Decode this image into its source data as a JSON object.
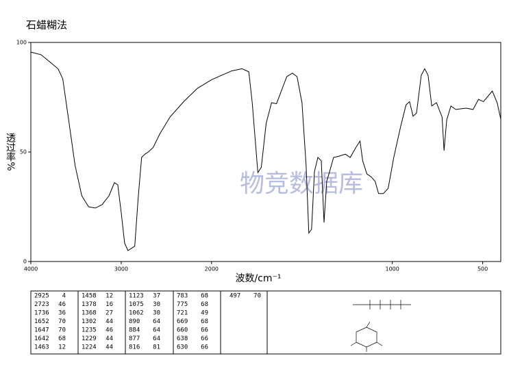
{
  "chart_data": {
    "type": "line",
    "title": "石蜡糊法",
    "ylabel": "透过率%",
    "xlabel": "波数/cm⁻¹",
    "watermark": "物竞数据库",
    "color": "#000000",
    "xlim": [
      4000,
      400
    ],
    "x_scale_break": 2000,
    "ylim": [
      0,
      100
    ],
    "xticks": [
      4000,
      3000,
      2000,
      1000,
      500
    ],
    "yticks": [
      0,
      50,
      100
    ],
    "x": [
      4000,
      3887,
      3774,
      3699,
      3647,
      3586,
      3511,
      3436,
      3361,
      3286,
      3211,
      3135,
      3075,
      3038,
      3000,
      2962,
      2925,
      2887,
      2850,
      2812,
      2774,
      2737,
      2700,
      2647,
      2571,
      2459,
      2308,
      2158,
      2000,
      1889,
      1832,
      1794,
      1775,
      1744,
      1725,
      1698,
      1668,
      1641,
      1584,
      1553,
      1527,
      1500,
      1477,
      1462,
      1447,
      1431,
      1412,
      1393,
      1378,
      1363,
      1347,
      1325,
      1298,
      1260,
      1233,
      1202,
      1179,
      1164,
      1141,
      1118,
      1095,
      1076,
      1050,
      1023,
      992,
      954,
      924,
      905,
      885,
      866,
      840,
      821,
      802,
      782,
      756,
      725,
      714,
      699,
      676,
      649,
      592,
      553,
      523,
      496,
      447,
      420,
      400
    ],
    "values": [
      95.6,
      94.4,
      90.6,
      88,
      83.4,
      66,
      44,
      30,
      25,
      24.4,
      26,
      30,
      36,
      35,
      22.5,
      8.4,
      5,
      6,
      7,
      29,
      47.5,
      49,
      50,
      52,
      58.4,
      66,
      73,
      79,
      83,
      87,
      88,
      86.6,
      72.5,
      40.6,
      43,
      63,
      72.5,
      72,
      84.4,
      86,
      84.4,
      72.5,
      44,
      13,
      14.7,
      41,
      47.5,
      46,
      17.8,
      36.6,
      41,
      47.5,
      48,
      49,
      47.5,
      52,
      55,
      46,
      40,
      38.7,
      36.6,
      31,
      31,
      33.4,
      47.5,
      61.6,
      71.5,
      73,
      66.3,
      67.8,
      85,
      88,
      85,
      71,
      72.5,
      66,
      50.6,
      64.7,
      71,
      69.4,
      70,
      69.4,
      74,
      73,
      77.8,
      72.5,
      65
    ]
  },
  "peak_table": [
    [
      [
        2925,
        4
      ],
      [
        2723,
        46
      ],
      [
        1736,
        36
      ],
      [
        1652,
        70
      ],
      [
        1647,
        70
      ],
      [
        1642,
        68
      ],
      [
        1463,
        12
      ]
    ],
    [
      [
        1458,
        12
      ],
      [
        1378,
        16
      ],
      [
        1368,
        27
      ],
      [
        1302,
        44
      ],
      [
        1235,
        46
      ],
      [
        1229,
        44
      ],
      [
        1224,
        44
      ]
    ],
    [
      [
        1123,
        37
      ],
      [
        1075,
        30
      ],
      [
        1062,
        30
      ],
      [
        890,
        64
      ],
      [
        884,
        64
      ],
      [
        877,
        64
      ],
      [
        816,
        81
      ]
    ],
    [
      [
        783,
        68
      ],
      [
        775,
        68
      ],
      [
        721,
        49
      ],
      [
        669,
        68
      ],
      [
        660,
        66
      ],
      [
        638,
        66
      ],
      [
        630,
        66
      ]
    ],
    [
      [
        497,
        70
      ]
    ]
  ]
}
